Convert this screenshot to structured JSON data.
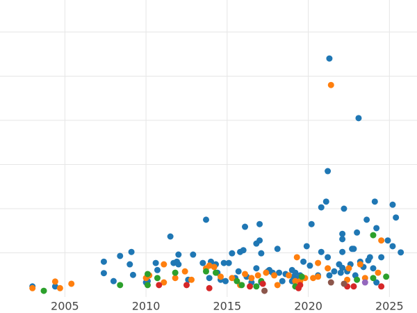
{
  "chart_data": {
    "type": "scatter",
    "xlim": [
      2001,
      2026.7
    ],
    "ylim": [
      0,
      7
    ],
    "xticks": [
      2005,
      2010,
      2015,
      2020,
      2025
    ],
    "yticks": [
      1,
      2,
      3,
      4,
      5,
      6
    ],
    "grid": true,
    "series": [
      {
        "color": "#1f77b4",
        "x": [
          2003.0,
          2004.4,
          2007.4,
          2007.4,
          2008.0,
          2008.4,
          2009.0,
          2009.1,
          2009.2,
          2010.0,
          2010.1,
          2010.6,
          2010.7,
          2011.5,
          2011.7,
          2011.9,
          2012.0,
          2012.0,
          2012.6,
          2012.9,
          2013.5,
          2013.7,
          2013.9,
          2014.0,
          2014.3,
          2014.4,
          2014.6,
          2014.8,
          2014.9,
          2015.1,
          2015.3,
          2015.5,
          2015.7,
          2015.8,
          2016.0,
          2016.1,
          2016.2,
          2016.5,
          2016.8,
          2016.8,
          2017.0,
          2017.0,
          2017.1,
          2017.1,
          2017.5,
          2017.6,
          2017.8,
          2018.1,
          2018.2,
          2018.4,
          2018.6,
          2019.0,
          2019.0,
          2019.1,
          2019.2,
          2019.4,
          2019.5,
          2019.7,
          2019.9,
          2020.1,
          2020.2,
          2020.6,
          2020.8,
          2020.8,
          2021.1,
          2021.2,
          2021.2,
          2021.3,
          2021.3,
          2021.6,
          2021.9,
          2022.0,
          2022.1,
          2022.1,
          2022.1,
          2022.1,
          2022.2,
          2022.4,
          2022.6,
          2022.7,
          2022.8,
          2022.9,
          2023.0,
          2023.1,
          2023.2,
          2023.4,
          2023.6,
          2023.7,
          2023.8,
          2024.0,
          2024.1,
          2024.2,
          2024.2,
          2024.5,
          2024.9,
          2025.2,
          2025.2,
          2025.4,
          2025.7
        ],
        "values": [
          0.24,
          0.24,
          0.8,
          0.54,
          0.36,
          0.93,
          0.74,
          1.02,
          0.5,
          0.33,
          0.36,
          0.77,
          0.61,
          1.37,
          0.77,
          0.8,
          0.96,
          0.74,
          0.39,
          0.96,
          0.77,
          1.75,
          0.43,
          0.8,
          0.74,
          0.55,
          0.39,
          0.77,
          0.36,
          0.77,
          0.99,
          0.43,
          0.58,
          1.02,
          1.06,
          1.59,
          0.46,
          0.33,
          1.21,
          0.65,
          1.65,
          1.28,
          0.99,
          0.33,
          0.58,
          0.61,
          0.55,
          1.09,
          0.55,
          0.36,
          0.52,
          0.61,
          0.36,
          0.46,
          0.55,
          0.43,
          0.49,
          0.8,
          1.15,
          0.71,
          1.65,
          0.49,
          1.02,
          2.03,
          2.16,
          0.9,
          2.85,
          0.49,
          5.4,
          0.58,
          0.74,
          0.55,
          1.02,
          1.43,
          1.31,
          0.66,
          2.0,
          0.58,
          0.74,
          1.09,
          1.09,
          0.49,
          1.46,
          4.05,
          0.8,
          0.68,
          1.75,
          0.83,
          0.9,
          0.65,
          2.16,
          1.56,
          0.33,
          0.9,
          1.28,
          2.09,
          1.15,
          1.8,
          1.01
        ]
      },
      {
        "color": "#ff7f0e",
        "x": [
          2003.0,
          2004.4,
          2004.7,
          2005.4,
          2010.0,
          2010.2,
          2011.1,
          2011.1,
          2011.8,
          2012.4,
          2012.8,
          2013.7,
          2013.9,
          2014.2,
          2014.6,
          2015.3,
          2015.8,
          2016.1,
          2016.5,
          2016.9,
          2017.4,
          2017.9,
          2018.1,
          2018.8,
          2019.2,
          2019.3,
          2019.5,
          2019.8,
          2020.3,
          2020.6,
          2020.6,
          2021.2,
          2021.4,
          2022.4,
          2022.5,
          2023.2,
          2023.5,
          2024.3,
          2024.5
        ],
        "values": [
          0.2,
          0.35,
          0.2,
          0.3,
          0.43,
          0.49,
          0.33,
          0.74,
          0.43,
          0.58,
          0.39,
          0.65,
          0.71,
          0.68,
          0.46,
          0.43,
          0.27,
          0.52,
          0.43,
          0.49,
          0.55,
          0.49,
          0.27,
          0.49,
          0.36,
          0.9,
          0.36,
          0.43,
          0.43,
          0.46,
          0.77,
          0.65,
          4.8,
          0.39,
          0.65,
          0.74,
          0.43,
          0.55,
          1.28
        ]
      },
      {
        "color": "#2ca02c",
        "x": [
          2003.7,
          2008.4,
          2010.1,
          2010.1,
          2010.7,
          2011.8,
          2013.7,
          2014.3,
          2015.6,
          2015.9,
          2016.8,
          2017.1,
          2019.2,
          2019.6,
          2023.0,
          2024.0,
          2024.0,
          2024.8
        ],
        "values": [
          0.14,
          0.27,
          0.27,
          0.52,
          0.43,
          0.55,
          0.58,
          0.55,
          0.36,
          0.27,
          0.24,
          0.36,
          0.24,
          0.46,
          0.39,
          1.4,
          0.43,
          0.46
        ]
      },
      {
        "color": "#d62728",
        "x": [
          2010.8,
          2012.5,
          2013.9,
          2016.4,
          2017.2,
          2019.4,
          2019.5,
          2022.4,
          2022.8,
          2024.5
        ],
        "values": [
          0.27,
          0.27,
          0.2,
          0.24,
          0.3,
          0.2,
          0.27,
          0.24,
          0.24,
          0.24
        ]
      },
      {
        "color": "#9467bd",
        "x": [
          2023.5
        ],
        "values": [
          0.33
        ]
      },
      {
        "color": "#8c564b",
        "x": [
          2017.3,
          2021.4,
          2022.2
        ],
        "values": [
          0.14,
          0.33,
          0.3
        ]
      }
    ]
  }
}
